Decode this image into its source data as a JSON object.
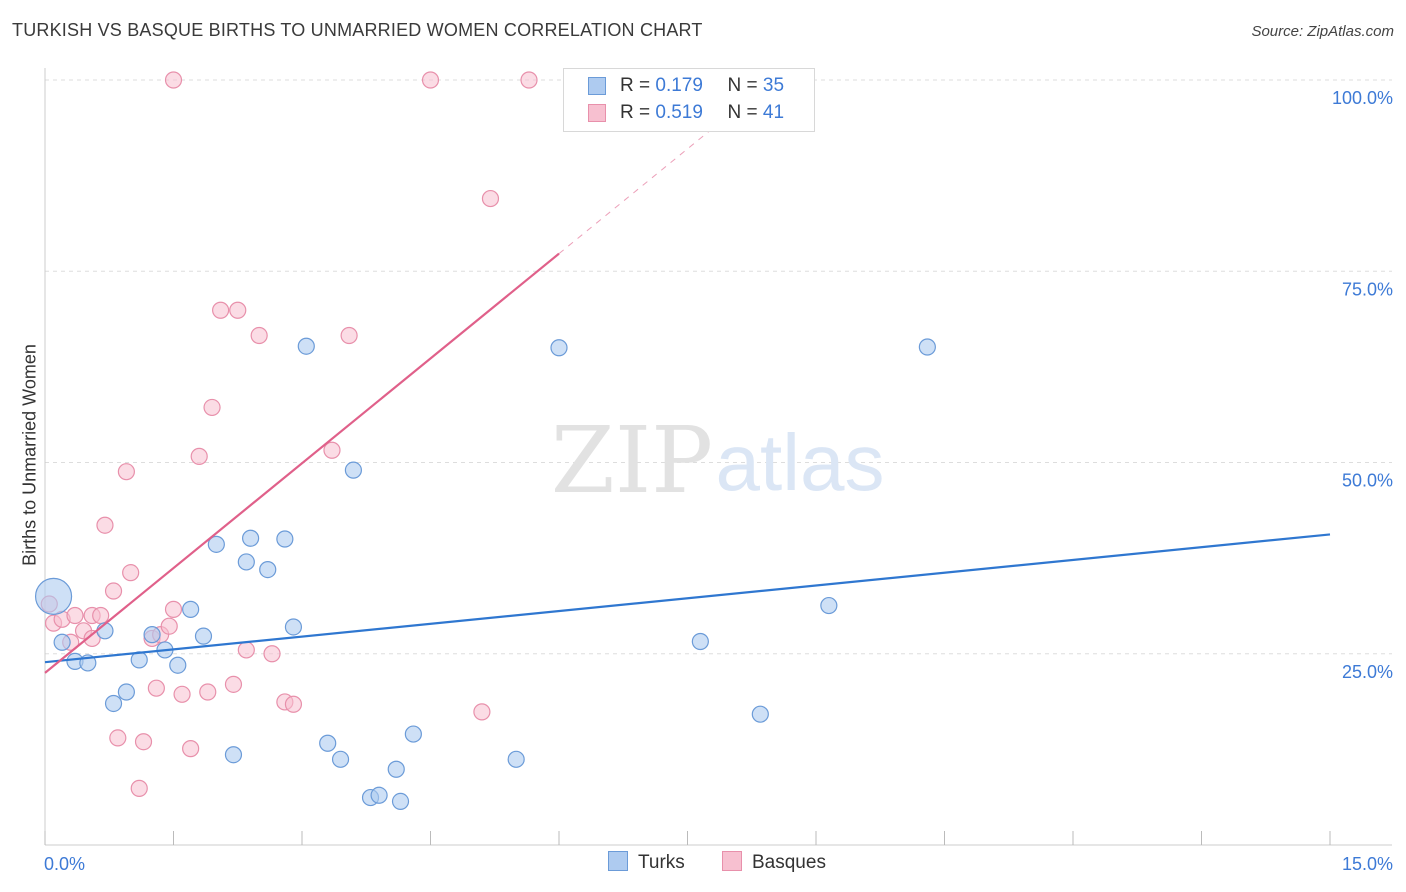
{
  "title": "TURKISH VS BASQUE BIRTHS TO UNMARRIED WOMEN CORRELATION CHART",
  "source": "Source: ZipAtlas.com",
  "watermark": {
    "zip": "ZIP",
    "atlas": "atlas"
  },
  "legend": {
    "turks": {
      "r_label": "R =",
      "r_value": "0.179",
      "n_label": "N =",
      "n_value": "35"
    },
    "basques": {
      "r_label": "R =",
      "r_value": "0.519",
      "n_label": "N =",
      "n_value": "41"
    }
  },
  "bottom_legend": {
    "turks": "Turks",
    "basques": "Basques"
  },
  "colors": {
    "turks_fill": "#aecbf0",
    "turks_stroke": "#6b9bd8",
    "turks_line": "#2f77d0",
    "basques_fill": "#f7c0d0",
    "basques_stroke": "#e890ab",
    "basques_line": "#e0608a",
    "axis_text": "#3d7ad6",
    "grid": "#dddddd"
  },
  "chart_data": {
    "type": "scatter",
    "title": "TURKISH VS BASQUE BIRTHS TO UNMARRIED WOMEN CORRELATION CHART",
    "xlabel": "",
    "ylabel": "Births to Unmarried Women",
    "xlim": [
      0,
      15
    ],
    "ylim": [
      0,
      100
    ],
    "x_tick_labels": [
      "0.0%",
      "15.0%"
    ],
    "y_ticks": [
      25,
      50,
      75,
      100
    ],
    "y_tick_labels": [
      "25.0%",
      "50.0%",
      "75.0%",
      "100.0%"
    ],
    "grid": true,
    "series": [
      {
        "name": "Turks",
        "r": 0.179,
        "n": 35,
        "trend": {
          "x0": 0,
          "y0": 23.9,
          "x1": 15,
          "y1": 40.6
        },
        "points": [
          {
            "x": 0.1,
            "y": 32.5,
            "big": true
          },
          {
            "x": 0.2,
            "y": 26.5
          },
          {
            "x": 0.35,
            "y": 24.0
          },
          {
            "x": 0.5,
            "y": 23.8
          },
          {
            "x": 0.7,
            "y": 28.0
          },
          {
            "x": 0.8,
            "y": 18.5
          },
          {
            "x": 0.95,
            "y": 20.0
          },
          {
            "x": 1.1,
            "y": 24.2
          },
          {
            "x": 1.25,
            "y": 27.5
          },
          {
            "x": 1.4,
            "y": 25.5
          },
          {
            "x": 1.55,
            "y": 23.5
          },
          {
            "x": 1.7,
            "y": 30.8
          },
          {
            "x": 1.85,
            "y": 27.3
          },
          {
            "x": 2.0,
            "y": 39.3
          },
          {
            "x": 2.2,
            "y": 11.8
          },
          {
            "x": 2.35,
            "y": 37.0
          },
          {
            "x": 2.4,
            "y": 40.1
          },
          {
            "x": 2.6,
            "y": 36.0
          },
          {
            "x": 2.8,
            "y": 40.0
          },
          {
            "x": 2.9,
            "y": 28.5
          },
          {
            "x": 3.05,
            "y": 65.2
          },
          {
            "x": 3.3,
            "y": 13.3
          },
          {
            "x": 3.45,
            "y": 11.2
          },
          {
            "x": 3.6,
            "y": 49.0
          },
          {
            "x": 3.8,
            "y": 6.2
          },
          {
            "x": 3.9,
            "y": 6.5
          },
          {
            "x": 4.1,
            "y": 9.9
          },
          {
            "x": 4.15,
            "y": 5.7
          },
          {
            "x": 4.3,
            "y": 14.5
          },
          {
            "x": 5.5,
            "y": 11.2
          },
          {
            "x": 6.0,
            "y": 65.0
          },
          {
            "x": 7.65,
            "y": 26.6
          },
          {
            "x": 8.35,
            "y": 17.1
          },
          {
            "x": 9.15,
            "y": 31.3
          },
          {
            "x": 10.3,
            "y": 65.1
          }
        ]
      },
      {
        "name": "Basques",
        "r": 0.519,
        "n": 41,
        "trend": {
          "x0": 0,
          "y0": 22.5,
          "x1": 6.0,
          "y1": 77.3,
          "dash_to_x": 8.0
        },
        "points": [
          {
            "x": 0.05,
            "y": 31.5
          },
          {
            "x": 0.1,
            "y": 29.0
          },
          {
            "x": 0.2,
            "y": 29.5
          },
          {
            "x": 0.3,
            "y": 26.5
          },
          {
            "x": 0.35,
            "y": 30.0
          },
          {
            "x": 0.45,
            "y": 28.0
          },
          {
            "x": 0.55,
            "y": 30.0
          },
          {
            "x": 0.55,
            "y": 27.0
          },
          {
            "x": 0.65,
            "y": 30.0
          },
          {
            "x": 0.7,
            "y": 41.8
          },
          {
            "x": 0.8,
            "y": 33.2
          },
          {
            "x": 0.85,
            "y": 14.0
          },
          {
            "x": 0.95,
            "y": 48.8
          },
          {
            "x": 1.0,
            "y": 35.6
          },
          {
            "x": 1.1,
            "y": 7.4
          },
          {
            "x": 1.15,
            "y": 13.5
          },
          {
            "x": 1.25,
            "y": 27.0
          },
          {
            "x": 1.3,
            "y": 20.5
          },
          {
            "x": 1.35,
            "y": 27.5
          },
          {
            "x": 1.45,
            "y": 28.6
          },
          {
            "x": 1.5,
            "y": 30.8
          },
          {
            "x": 1.5,
            "y": 100.0
          },
          {
            "x": 1.6,
            "y": 19.7
          },
          {
            "x": 1.7,
            "y": 12.6
          },
          {
            "x": 1.8,
            "y": 50.8
          },
          {
            "x": 1.9,
            "y": 20.0
          },
          {
            "x": 1.95,
            "y": 57.2
          },
          {
            "x": 2.05,
            "y": 69.9
          },
          {
            "x": 2.2,
            "y": 21.0
          },
          {
            "x": 2.25,
            "y": 69.9
          },
          {
            "x": 2.35,
            "y": 25.5
          },
          {
            "x": 2.5,
            "y": 66.6
          },
          {
            "x": 2.65,
            "y": 25.0
          },
          {
            "x": 2.8,
            "y": 18.7
          },
          {
            "x": 2.9,
            "y": 18.4
          },
          {
            "x": 3.35,
            "y": 51.6
          },
          {
            "x": 3.55,
            "y": 66.6
          },
          {
            "x": 4.5,
            "y": 100.0
          },
          {
            "x": 5.1,
            "y": 17.4
          },
          {
            "x": 5.2,
            "y": 84.5
          },
          {
            "x": 5.65,
            "y": 100.0
          }
        ]
      }
    ]
  }
}
